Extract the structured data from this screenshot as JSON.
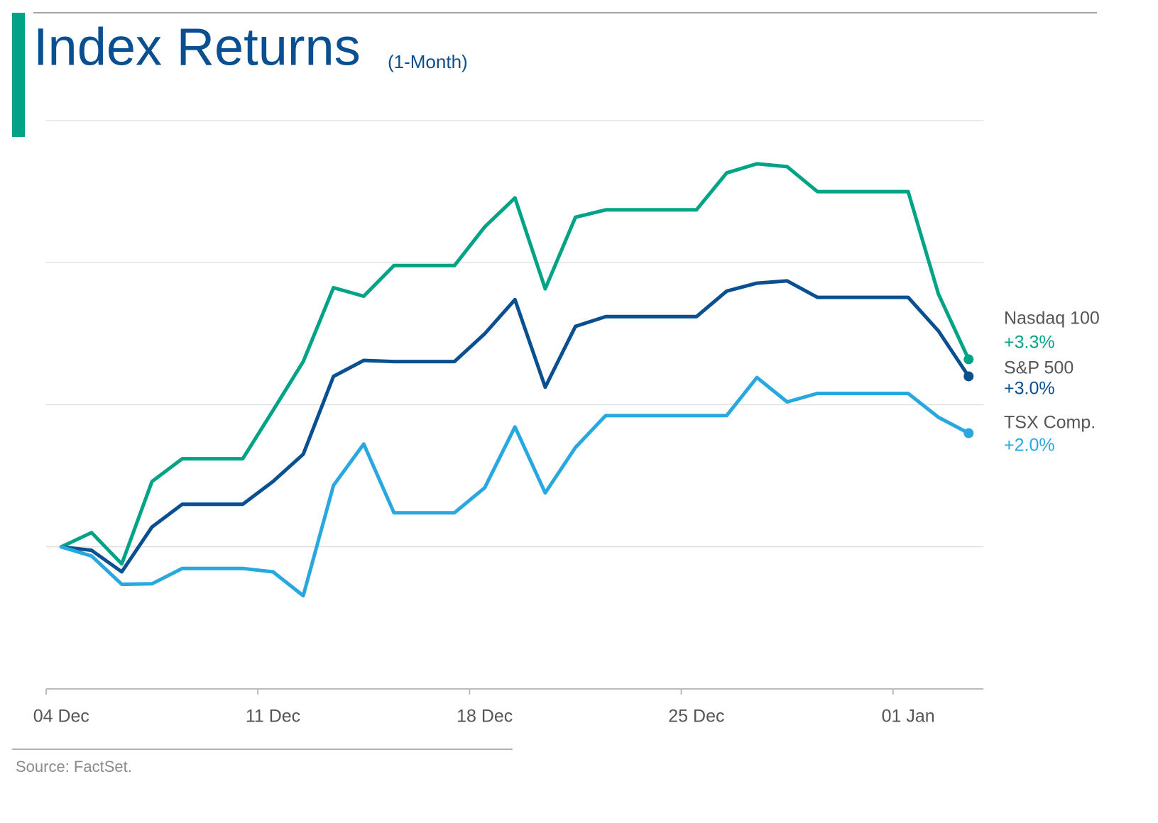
{
  "chart_data": {
    "type": "line",
    "title": "Index Returns",
    "subtitle": "(1-Month)",
    "source": "Source: FactSet.",
    "categories": [
      "04 Dec",
      null,
      null,
      null,
      null,
      null,
      null,
      "11 Dec",
      null,
      null,
      null,
      null,
      null,
      null,
      "18 Dec",
      null,
      null,
      null,
      null,
      null,
      null,
      "25 Dec",
      null,
      null,
      null,
      null,
      null,
      null,
      "01 Jan",
      null,
      null
    ],
    "series": [
      {
        "name": "Nasdaq 100",
        "color": "#00a386",
        "value_label": "+3.3%",
        "values": [
          0,
          0.25,
          -0.3,
          1.15,
          1.55,
          1.55,
          1.55,
          2.4,
          3.26,
          4.56,
          4.41,
          4.95,
          4.95,
          4.95,
          5.63,
          6.14,
          4.54,
          5.8,
          5.93,
          5.93,
          5.93,
          5.93,
          6.58,
          6.74,
          6.69,
          6.25,
          6.25,
          6.25,
          6.25,
          4.45,
          3.3
        ]
      },
      {
        "name": "S&P 500",
        "color": "#0a4f8f",
        "value_label": "+3.0%",
        "values": [
          0,
          -0.06,
          -0.44,
          0.35,
          0.75,
          0.75,
          0.75,
          1.15,
          1.63,
          3.0,
          3.28,
          3.26,
          3.26,
          3.26,
          3.75,
          4.35,
          2.81,
          3.88,
          4.05,
          4.05,
          4.05,
          4.05,
          4.5,
          4.64,
          4.68,
          4.39,
          4.39,
          4.39,
          4.39,
          3.8,
          3.0
        ]
      },
      {
        "name": "TSX Comp.",
        "color": "#29a8e0",
        "value_label": "+2.0%",
        "values": [
          0,
          -0.16,
          -0.66,
          -0.65,
          -0.38,
          -0.38,
          -0.38,
          -0.44,
          -0.86,
          1.08,
          1.81,
          0.6,
          0.6,
          0.6,
          1.04,
          2.11,
          0.95,
          1.75,
          2.31,
          2.31,
          2.31,
          2.31,
          2.31,
          2.98,
          2.55,
          2.7,
          2.7,
          2.7,
          2.7,
          2.28,
          2.0
        ]
      }
    ],
    "ylim": [
      -2.5,
      7.5
    ],
    "yticks": [
      -2.5,
      0,
      2.5,
      5,
      7.5
    ],
    "grid": true
  }
}
